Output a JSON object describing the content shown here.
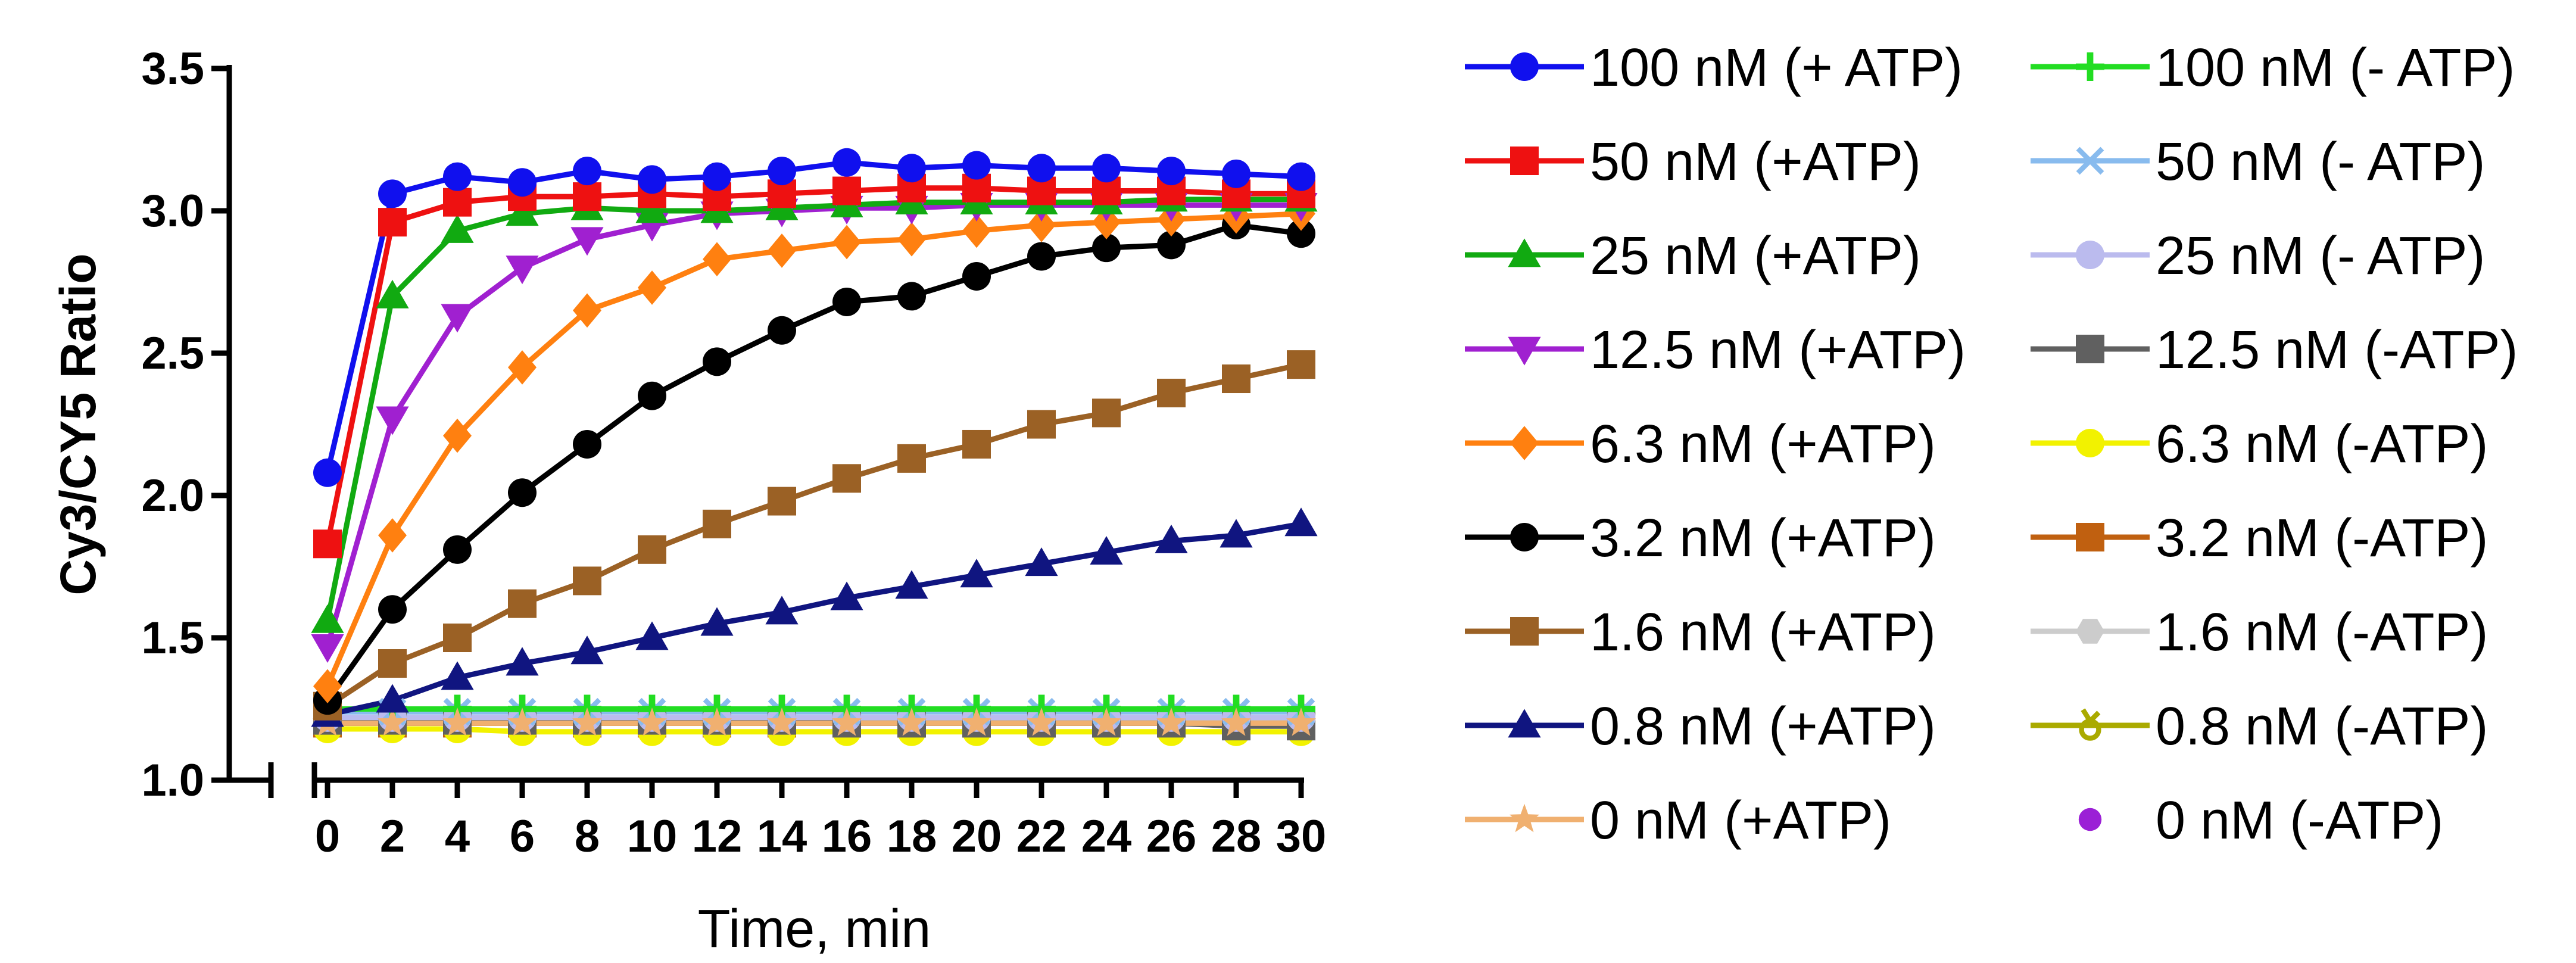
{
  "chart_data": {
    "type": "line",
    "title": "",
    "xlabel": "Time, min",
    "ylabel": "Cy3/CY5  Ratio",
    "xlim": [
      0,
      30
    ],
    "ylim": [
      1.0,
      3.5
    ],
    "x_ticks": [
      0,
      2,
      4,
      6,
      8,
      10,
      12,
      14,
      16,
      18,
      20,
      22,
      24,
      26,
      28,
      30
    ],
    "y_ticks": [
      1.0,
      1.5,
      2.0,
      2.5,
      3.0,
      3.5
    ],
    "grid": false,
    "legend_position": "right",
    "x": [
      0,
      2,
      4,
      6,
      8,
      10,
      12,
      14,
      16,
      18,
      20,
      22,
      24,
      26,
      28,
      30
    ],
    "series": [
      {
        "name": "100 nM (+ ATP)",
        "color": "#1010ee",
        "marker": "circle",
        "values": [
          2.08,
          3.06,
          3.12,
          3.1,
          3.14,
          3.11,
          3.12,
          3.14,
          3.17,
          3.15,
          3.16,
          3.15,
          3.15,
          3.14,
          3.13,
          3.12
        ]
      },
      {
        "name": "50 nM (+ATP)",
        "color": "#ee1111",
        "marker": "square",
        "values": [
          1.83,
          2.96,
          3.03,
          3.05,
          3.05,
          3.06,
          3.05,
          3.06,
          3.07,
          3.08,
          3.08,
          3.07,
          3.07,
          3.07,
          3.06,
          3.06
        ]
      },
      {
        "name": "25 nM (+ATP)",
        "color": "#11aa11",
        "marker": "triangle-up",
        "values": [
          1.56,
          2.7,
          2.93,
          2.99,
          3.01,
          3.0,
          3.0,
          3.01,
          3.02,
          3.03,
          3.03,
          3.03,
          3.03,
          3.04,
          3.04,
          3.04
        ]
      },
      {
        "name": "12.5 nM (+ATP)",
        "color": "#a020d0",
        "marker": "triangle-down",
        "values": [
          1.47,
          2.27,
          2.63,
          2.8,
          2.9,
          2.95,
          2.99,
          3.0,
          3.01,
          3.01,
          3.02,
          3.02,
          3.02,
          3.02,
          3.02,
          3.02
        ]
      },
      {
        "name": "6.3 nM (+ATP)",
        "color": "#ff8010",
        "marker": "diamond",
        "values": [
          1.33,
          1.86,
          2.21,
          2.45,
          2.65,
          2.73,
          2.83,
          2.86,
          2.89,
          2.9,
          2.93,
          2.95,
          2.96,
          2.97,
          2.98,
          2.99
        ]
      },
      {
        "name": "3.2 nM (+ATP)",
        "color": "#000000",
        "marker": "circle",
        "values": [
          1.28,
          1.6,
          1.81,
          2.01,
          2.18,
          2.35,
          2.47,
          2.58,
          2.68,
          2.7,
          2.77,
          2.84,
          2.87,
          2.88,
          2.95,
          2.92
        ]
      },
      {
        "name": "1.6 nM (+ATP)",
        "color": "#9b6125",
        "marker": "square",
        "values": [
          1.26,
          1.41,
          1.5,
          1.62,
          1.7,
          1.81,
          1.9,
          1.98,
          2.06,
          2.13,
          2.18,
          2.25,
          2.29,
          2.36,
          2.41,
          2.46
        ]
      },
      {
        "name": "0.8 nM (+ATP)",
        "color": "#101580",
        "marker": "triangle-up",
        "values": [
          1.23,
          1.28,
          1.36,
          1.41,
          1.45,
          1.5,
          1.55,
          1.59,
          1.64,
          1.68,
          1.72,
          1.76,
          1.8,
          1.84,
          1.86,
          1.9
        ]
      },
      {
        "name": "0 nM (+ATP)",
        "color": "#f0b070",
        "marker": "star",
        "values": [
          1.2,
          1.2,
          1.2,
          1.2,
          1.2,
          1.2,
          1.2,
          1.2,
          1.2,
          1.2,
          1.2,
          1.2,
          1.2,
          1.2,
          1.2,
          1.2
        ]
      },
      {
        "name": "100 nM (- ATP)",
        "color": "#22dd22",
        "marker": "plus",
        "values": [
          1.25,
          1.25,
          1.25,
          1.25,
          1.25,
          1.25,
          1.25,
          1.25,
          1.25,
          1.25,
          1.25,
          1.25,
          1.25,
          1.25,
          1.25,
          1.25
        ]
      },
      {
        "name": "50 nM (- ATP)",
        "color": "#88bbee",
        "marker": "x",
        "values": [
          1.24,
          1.24,
          1.24,
          1.24,
          1.24,
          1.24,
          1.24,
          1.24,
          1.24,
          1.24,
          1.24,
          1.24,
          1.24,
          1.24,
          1.24,
          1.24
        ]
      },
      {
        "name": "25 nM (- ATP)",
        "color": "#bbbbee",
        "marker": "circle",
        "values": [
          1.22,
          1.22,
          1.22,
          1.22,
          1.22,
          1.22,
          1.22,
          1.22,
          1.22,
          1.22,
          1.22,
          1.22,
          1.22,
          1.22,
          1.22,
          1.22
        ]
      },
      {
        "name": "12.5 nM (-ATP)",
        "color": "#606060",
        "marker": "square",
        "values": [
          1.21,
          1.21,
          1.21,
          1.21,
          1.21,
          1.21,
          1.21,
          1.21,
          1.2,
          1.2,
          1.2,
          1.2,
          1.2,
          1.2,
          1.19,
          1.19
        ]
      },
      {
        "name": "6.3 nM (-ATP)",
        "color": "#f2f200",
        "marker": "circle",
        "values": [
          1.18,
          1.18,
          1.18,
          1.17,
          1.17,
          1.17,
          1.17,
          1.17,
          1.17,
          1.17,
          1.17,
          1.17,
          1.17,
          1.17,
          1.17,
          1.17
        ]
      },
      {
        "name": "3.2 nM (-ATP)",
        "color": "#c06010",
        "marker": "square",
        "values": [
          1.2,
          1.2,
          1.2,
          1.2,
          1.2,
          1.2,
          1.2,
          1.2,
          1.2,
          1.2,
          1.2,
          1.2,
          1.2,
          1.2,
          1.2,
          1.2
        ]
      },
      {
        "name": "1.6 nM (-ATP)",
        "color": "#cccccc",
        "marker": "hexagon",
        "values": [
          1.21,
          1.21,
          1.21,
          1.21,
          1.21,
          1.21,
          1.21,
          1.21,
          1.21,
          1.21,
          1.21,
          1.21,
          1.21,
          1.21,
          1.21,
          1.21
        ]
      },
      {
        "name": "0.8 nM (-ATP)",
        "color": "#aaaa00",
        "marker": "ring",
        "values": [
          1.2,
          1.2,
          1.2,
          1.2,
          1.2,
          1.2,
          1.2,
          1.2,
          1.2,
          1.2,
          1.2,
          1.2,
          1.2,
          1.2,
          1.2,
          1.2
        ]
      },
      {
        "name": "0 nM (-ATP)",
        "color": "#9b20d6",
        "marker": "dot",
        "values": [
          1.2,
          1.2,
          1.2,
          1.2,
          1.2,
          1.2,
          1.2,
          1.2,
          1.2,
          1.2,
          1.2,
          1.2,
          1.2,
          1.2,
          1.2,
          1.2
        ]
      }
    ]
  }
}
